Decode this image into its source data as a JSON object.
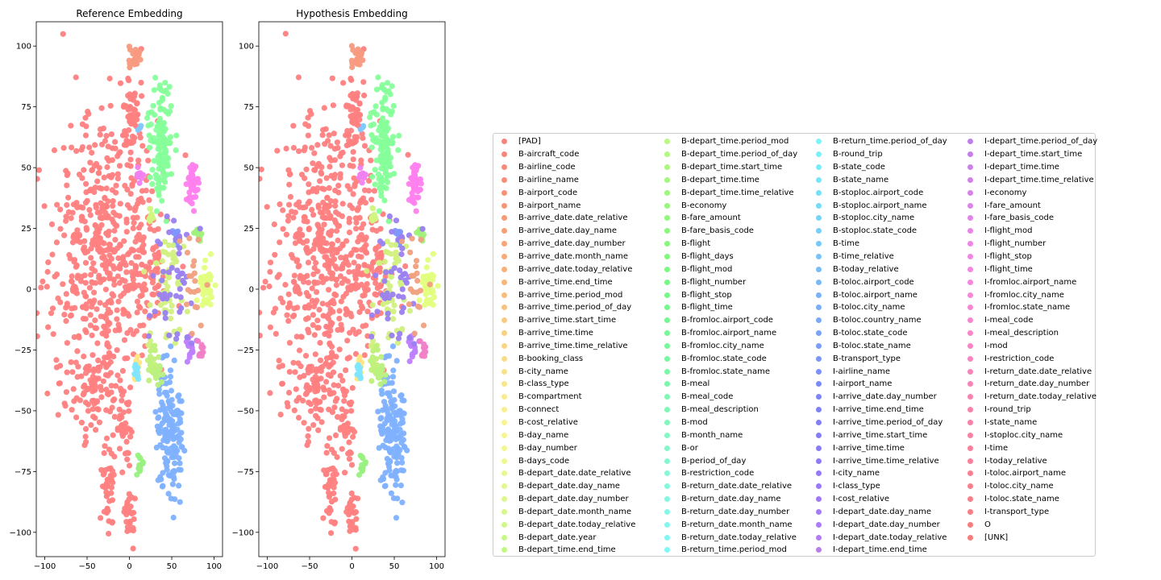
{
  "chart_data": {
    "type": "scatter",
    "panels": [
      {
        "title": "Reference Embedding",
        "xlim": [
          -110,
          110
        ],
        "ylim": [
          -110,
          110
        ],
        "xticks": [
          -100,
          -50,
          0,
          50,
          100
        ],
        "yticks": [
          -100,
          -75,
          -50,
          -25,
          0,
          25,
          50,
          75,
          100
        ],
        "xtick_labels": [
          "−100",
          "−50",
          "0",
          "50",
          "100"
        ],
        "ytick_labels": [
          "−100",
          "−75",
          "−50",
          "−25",
          "0",
          "25",
          "50",
          "75",
          "100"
        ],
        "grid": false
      },
      {
        "title": "Hypothesis Embedding",
        "xlim": [
          -110,
          110
        ],
        "ylim": [
          -110,
          110
        ],
        "xticks": [
          -100,
          -50,
          0,
          50,
          100
        ],
        "yticks": [
          -100,
          -75,
          -50,
          -25,
          0,
          25,
          50,
          75,
          100
        ],
        "xtick_labels": [
          "−100",
          "−50",
          "0",
          "50",
          "100"
        ],
        "ytick_labels": [
          "−100",
          "−75",
          "−50",
          "−25",
          "0",
          "25",
          "50",
          "75",
          "100"
        ],
        "grid": false
      }
    ],
    "clusters": [
      {
        "label": "O",
        "color": "#ff7f7f",
        "x": -30,
        "y": 15,
        "sx": 32,
        "sy": 30,
        "n": 520
      },
      {
        "label": "O",
        "color": "#ff7f7f",
        "x": -40,
        "y": -42,
        "sx": 18,
        "sy": 10,
        "n": 90
      },
      {
        "label": "O",
        "color": "#ff7f7f",
        "x": -25,
        "y": -80,
        "sx": 5,
        "sy": 9,
        "n": 40
      },
      {
        "label": "O",
        "color": "#ff7f7f",
        "x": 2,
        "y": 68,
        "sx": 6,
        "sy": 9,
        "n": 60
      },
      {
        "label": "O",
        "color": "#ff7f7f",
        "x": 0,
        "y": -92,
        "sx": 4,
        "sy": 6,
        "n": 25
      },
      {
        "label": "O",
        "color": "#ff7f7f",
        "x": -5,
        "y": -60,
        "sx": 6,
        "sy": 8,
        "n": 30
      },
      {
        "label": "O",
        "color": "#ff7f7f",
        "x": 25,
        "y": 10,
        "sx": 10,
        "sy": 12,
        "n": 60
      },
      {
        "label": "[PAD]",
        "color": "#f79a80",
        "x": 6,
        "y": 95,
        "sx": 3,
        "sy": 3,
        "n": 25
      },
      {
        "label": "B-fromloc.city_name",
        "color": "#86ff9a",
        "x": 38,
        "y": 60,
        "sx": 7,
        "sy": 12,
        "n": 130
      },
      {
        "label": "I-flight_time",
        "color": "#ff80ee",
        "x": 74,
        "y": 44,
        "sx": 3,
        "sy": 4,
        "n": 40
      },
      {
        "label": "B-depart_date.day_number",
        "color": "#e1ff80",
        "x": 90,
        "y": 2,
        "sx": 4,
        "sy": 5,
        "n": 45
      },
      {
        "label": "B-toloc.city_name",
        "color": "#80b1ff",
        "x": 48,
        "y": -58,
        "sx": 8,
        "sy": 12,
        "n": 150
      },
      {
        "label": "B-depart_date.day_name",
        "color": "#d1f580",
        "x": 25,
        "y": 30,
        "sx": 2,
        "sy": 2,
        "n": 12
      },
      {
        "label": "B-toloc.country_name",
        "color": "#8096ff",
        "x": 55,
        "y": 22,
        "sx": 2,
        "sy": 3,
        "n": 12
      },
      {
        "label": "B-flight_mod",
        "color": "#a0f07a",
        "x": 80,
        "y": 22,
        "sx": 3,
        "sy": 2,
        "n": 12
      },
      {
        "label": "I-economy",
        "color": "#be80ff",
        "x": 72,
        "y": -22,
        "sx": 3,
        "sy": 3,
        "n": 15
      },
      {
        "label": "I-meal_code",
        "color": "#f080c8",
        "x": 85,
        "y": -25,
        "sx": 2,
        "sy": 2,
        "n": 10
      },
      {
        "label": "B-class_type",
        "color": "#ffe680",
        "x": 8,
        "y": -33,
        "sx": 2,
        "sy": 2,
        "n": 14
      },
      {
        "label": "B-stoploc.city_name",
        "color": "#80e6ff",
        "x": 8,
        "y": -33,
        "sx": 2,
        "sy": 2,
        "n": 10
      },
      {
        "label": "B-economy",
        "color": "#c0f07a",
        "x": 28,
        "y": -30,
        "sx": 4,
        "sy": 4,
        "n": 25
      },
      {
        "label": "B-fare_amount",
        "color": "#98f080",
        "x": 12,
        "y": -72,
        "sx": 2,
        "sy": 3,
        "n": 12
      },
      {
        "label": "B-depart_time.time",
        "color": "#b9f080",
        "x": 35,
        "y": -35,
        "sx": 3,
        "sy": 3,
        "n": 12
      },
      {
        "label": "B-airline_name",
        "color": "#d1f080",
        "x": 45,
        "y": 0,
        "sx": 12,
        "sy": 14,
        "n": 60
      },
      {
        "label": "I-depart_time.time_relative",
        "color": "#9a80f0",
        "x": 55,
        "y": 5,
        "sx": 12,
        "sy": 14,
        "n": 45
      },
      {
        "label": "B-return_date.day_name",
        "color": "#f0a080",
        "x": 75,
        "y": 5,
        "sx": 10,
        "sy": 10,
        "n": 20
      },
      {
        "label": "I-fromloc.airport_name",
        "color": "#f080f0",
        "x": 12,
        "y": 47,
        "sx": 2,
        "sy": 2,
        "n": 10
      },
      {
        "label": "B-stoploc.state_code",
        "color": "#80c8ff",
        "x": 12,
        "y": 66,
        "sx": 1,
        "sy": 1,
        "n": 3
      }
    ],
    "legend": {
      "placement": "right",
      "entries": [
        {
          "label": "[PAD]",
          "color": "#f8837c"
        },
        {
          "label": "B-aircraft_code",
          "color": "#f8867a"
        },
        {
          "label": "B-airline_code",
          "color": "#f88a79"
        },
        {
          "label": "B-airline_name",
          "color": "#f88d78"
        },
        {
          "label": "B-airport_code",
          "color": "#f89177"
        },
        {
          "label": "B-airport_name",
          "color": "#f89576"
        },
        {
          "label": "B-arrive_date.date_relative",
          "color": "#f89a76"
        },
        {
          "label": "B-arrive_date.day_name",
          "color": "#f89f76"
        },
        {
          "label": "B-arrive_date.day_number",
          "color": "#f8a476"
        },
        {
          "label": "B-arrive_date.month_name",
          "color": "#f8aa77"
        },
        {
          "label": "B-arrive_date.today_relative",
          "color": "#f8b078"
        },
        {
          "label": "B-arrive_time.end_time",
          "color": "#f8b779"
        },
        {
          "label": "B-arrive_time.period_mod",
          "color": "#f8bd7b"
        },
        {
          "label": "B-arrive_time.period_of_day",
          "color": "#f8c37d"
        },
        {
          "label": "B-arrive_time.start_time",
          "color": "#f8ca7f"
        },
        {
          "label": "B-arrive_time.time",
          "color": "#f8d081"
        },
        {
          "label": "B-arrive_time.time_relative",
          "color": "#f8d684"
        },
        {
          "label": "B-booking_class",
          "color": "#f8dc86"
        },
        {
          "label": "B-city_name",
          "color": "#f8e288"
        },
        {
          "label": "B-class_type",
          "color": "#f8e78a"
        },
        {
          "label": "B-compartment",
          "color": "#f8ec8c"
        },
        {
          "label": "B-connect",
          "color": "#f8f08d"
        },
        {
          "label": "B-cost_relative",
          "color": "#f8f48e"
        },
        {
          "label": "B-day_name",
          "color": "#f6f68e"
        },
        {
          "label": "B-day_number",
          "color": "#f2f88e"
        },
        {
          "label": "B-days_code",
          "color": "#eef88e"
        },
        {
          "label": "B-depart_date.date_relative",
          "color": "#e8f88d"
        },
        {
          "label": "B-depart_date.day_name",
          "color": "#e2f88c"
        },
        {
          "label": "B-depart_date.day_number",
          "color": "#dcf88a"
        },
        {
          "label": "B-depart_date.month_name",
          "color": "#d6f888"
        },
        {
          "label": "B-depart_date.today_relative",
          "color": "#cff886"
        },
        {
          "label": "B-depart_date.year",
          "color": "#c8f884"
        },
        {
          "label": "B-depart_time.end_time",
          "color": "#c1f882"
        },
        {
          "label": "B-depart_time.period_mod",
          "color": "#baf880"
        },
        {
          "label": "B-depart_time.period_of_day",
          "color": "#b3f87f"
        },
        {
          "label": "B-depart_time.start_time",
          "color": "#acf87e"
        },
        {
          "label": "B-depart_time.time",
          "color": "#a5f87d"
        },
        {
          "label": "B-depart_time.time_relative",
          "color": "#9ef87c"
        },
        {
          "label": "B-economy",
          "color": "#97f87c"
        },
        {
          "label": "B-fare_amount",
          "color": "#91f87c"
        },
        {
          "label": "B-fare_basis_code",
          "color": "#8bf87d"
        },
        {
          "label": "B-flight",
          "color": "#86f87e"
        },
        {
          "label": "B-flight_days",
          "color": "#81f880"
        },
        {
          "label": "B-flight_mod",
          "color": "#7df882"
        },
        {
          "label": "B-flight_number",
          "color": "#7af885"
        },
        {
          "label": "B-flight_stop",
          "color": "#78f888"
        },
        {
          "label": "B-flight_time",
          "color": "#77f88c"
        },
        {
          "label": "B-fromloc.airport_code",
          "color": "#76f890"
        },
        {
          "label": "B-fromloc.airport_name",
          "color": "#76f895"
        },
        {
          "label": "B-fromloc.city_name",
          "color": "#77f89a"
        },
        {
          "label": "B-fromloc.state_code",
          "color": "#78f8a0"
        },
        {
          "label": "B-fromloc.state_name",
          "color": "#7af8a6"
        },
        {
          "label": "B-meal",
          "color": "#7cf8ac"
        },
        {
          "label": "B-meal_code",
          "color": "#7ef8b2"
        },
        {
          "label": "B-meal_description",
          "color": "#80f8b8"
        },
        {
          "label": "B-mod",
          "color": "#82f8be"
        },
        {
          "label": "B-month_name",
          "color": "#84f8c4"
        },
        {
          "label": "B-or",
          "color": "#85f8ca"
        },
        {
          "label": "B-period_of_day",
          "color": "#86f8d0"
        },
        {
          "label": "B-restriction_code",
          "color": "#86f8d6"
        },
        {
          "label": "B-return_date.date_relative",
          "color": "#86f8dc"
        },
        {
          "label": "B-return_date.day_name",
          "color": "#86f8e2"
        },
        {
          "label": "B-return_date.day_number",
          "color": "#85f8e8"
        },
        {
          "label": "B-return_date.month_name",
          "color": "#84f8ee"
        },
        {
          "label": "B-return_date.today_relative",
          "color": "#82f8f4"
        },
        {
          "label": "B-return_time.period_mod",
          "color": "#80f8f8"
        },
        {
          "label": "B-return_time.period_of_day",
          "color": "#7ef4f8"
        },
        {
          "label": "B-round_trip",
          "color": "#7cf0f8"
        },
        {
          "label": "B-state_code",
          "color": "#7aecf8"
        },
        {
          "label": "B-state_name",
          "color": "#78e6f8"
        },
        {
          "label": "B-stoploc.airport_code",
          "color": "#76e0f8"
        },
        {
          "label": "B-stoploc.airport_name",
          "color": "#75dbf8"
        },
        {
          "label": "B-stoploc.city_name",
          "color": "#75d5f8"
        },
        {
          "label": "B-stoploc.state_code",
          "color": "#76cff8"
        },
        {
          "label": "B-time",
          "color": "#77c9f8"
        },
        {
          "label": "B-time_relative",
          "color": "#78c3f8"
        },
        {
          "label": "B-today_relative",
          "color": "#79bdf8"
        },
        {
          "label": "B-toloc.airport_code",
          "color": "#7ab8f8"
        },
        {
          "label": "B-toloc.airport_name",
          "color": "#7bb3f8"
        },
        {
          "label": "B-toloc.city_name",
          "color": "#7caef8"
        },
        {
          "label": "B-toloc.country_name",
          "color": "#7ca8f8"
        },
        {
          "label": "B-toloc.state_code",
          "color": "#7ca2f8"
        },
        {
          "label": "B-toloc.state_name",
          "color": "#7c9cf8"
        },
        {
          "label": "B-transport_type",
          "color": "#7c96f8"
        },
        {
          "label": "I-airline_name",
          "color": "#7c90f8"
        },
        {
          "label": "I-airport_name",
          "color": "#7c8af8"
        },
        {
          "label": "I-arrive_date.day_number",
          "color": "#7d85f8"
        },
        {
          "label": "I-arrive_time.end_time",
          "color": "#7f81f8"
        },
        {
          "label": "I-arrive_time.period_of_day",
          "color": "#827ef8"
        },
        {
          "label": "I-arrive_time.start_time",
          "color": "#867cf8"
        },
        {
          "label": "I-arrive_time.time",
          "color": "#8a7bf8"
        },
        {
          "label": "I-arrive_time.time_relative",
          "color": "#8f7af8"
        },
        {
          "label": "I-city_name",
          "color": "#947af8"
        },
        {
          "label": "I-class_type",
          "color": "#9a7af8"
        },
        {
          "label": "I-cost_relative",
          "color": "#a07af8"
        },
        {
          "label": "I-depart_date.day_name",
          "color": "#a67bf8"
        },
        {
          "label": "I-depart_date.day_number",
          "color": "#ac7cf8"
        },
        {
          "label": "I-depart_date.today_relative",
          "color": "#b27df0"
        },
        {
          "label": "I-depart_time.end_time",
          "color": "#b87ee8"
        },
        {
          "label": "I-depart_time.period_of_day",
          "color": "#be7fe8"
        },
        {
          "label": "I-depart_time.start_time",
          "color": "#c480e8"
        },
        {
          "label": "I-depart_time.time",
          "color": "#ca81e8"
        },
        {
          "label": "I-depart_time.time_relative",
          "color": "#d082e8"
        },
        {
          "label": "I-economy",
          "color": "#d683e8"
        },
        {
          "label": "I-fare_amount",
          "color": "#dc84e8"
        },
        {
          "label": "I-fare_basis_code",
          "color": "#e285e8"
        },
        {
          "label": "I-flight_mod",
          "color": "#e886e8"
        },
        {
          "label": "I-flight_number",
          "color": "#ee86e8"
        },
        {
          "label": "I-flight_stop",
          "color": "#f286e6"
        },
        {
          "label": "I-flight_time",
          "color": "#f586e2"
        },
        {
          "label": "I-fromloc.airport_name",
          "color": "#f786de"
        },
        {
          "label": "I-fromloc.city_name",
          "color": "#f886d9"
        },
        {
          "label": "I-fromloc.state_name",
          "color": "#f886d4"
        },
        {
          "label": "I-meal_code",
          "color": "#f885cf"
        },
        {
          "label": "I-meal_description",
          "color": "#f885ca"
        },
        {
          "label": "I-mod",
          "color": "#f884c5"
        },
        {
          "label": "I-restriction_code",
          "color": "#f884c0"
        },
        {
          "label": "I-return_date.date_relative",
          "color": "#f883bb"
        },
        {
          "label": "I-return_date.day_number",
          "color": "#f883b6"
        },
        {
          "label": "I-return_date.today_relative",
          "color": "#f882b1"
        },
        {
          "label": "I-round_trip",
          "color": "#f882ac"
        },
        {
          "label": "I-state_name",
          "color": "#f881a7"
        },
        {
          "label": "I-stoploc.city_name",
          "color": "#f881a2"
        },
        {
          "label": "I-time",
          "color": "#f8809d"
        },
        {
          "label": "I-today_relative",
          "color": "#f88098"
        },
        {
          "label": "I-toloc.airport_name",
          "color": "#f87f93"
        },
        {
          "label": "I-toloc.city_name",
          "color": "#f87f8e"
        },
        {
          "label": "I-toloc.state_name",
          "color": "#f87e89"
        },
        {
          "label": "I-transport_type",
          "color": "#f87e84"
        },
        {
          "label": "O",
          "color": "#f87d7f"
        },
        {
          "label": "[UNK]",
          "color": "#f87c7a"
        }
      ]
    }
  }
}
